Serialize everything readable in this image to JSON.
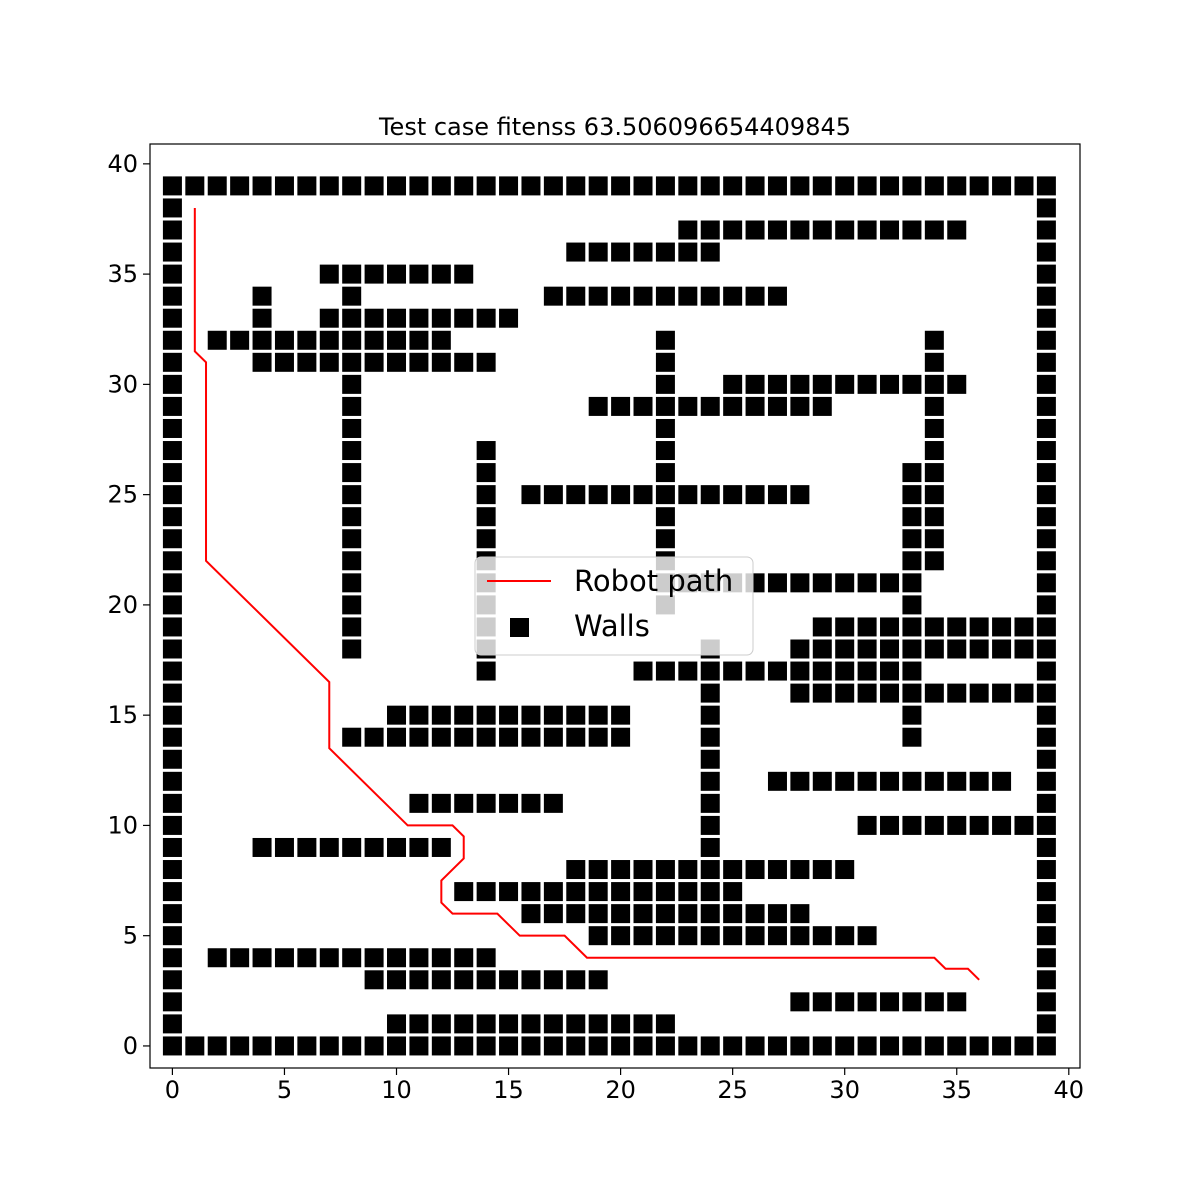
{
  "chart_data": {
    "type": "scatter",
    "title": "Test case fitenss 63.506096654409845",
    "xlabel": "",
    "ylabel": "",
    "xlim": [
      -1,
      40.5
    ],
    "ylim": [
      -1,
      40.9
    ],
    "xticks": [
      0,
      5,
      10,
      15,
      20,
      25,
      30,
      35,
      40
    ],
    "yticks": [
      0,
      5,
      10,
      15,
      20,
      25,
      30,
      35,
      40
    ],
    "xtick_labels": [
      "0",
      "5",
      "10",
      "15",
      "20",
      "25",
      "30",
      "35",
      "40"
    ],
    "ytick_labels": [
      "0",
      "5",
      "10",
      "15",
      "20",
      "25",
      "30",
      "35",
      "40"
    ],
    "legend": {
      "location": "center",
      "entries": [
        {
          "label": "Robot path",
          "marker": "line",
          "color": "#ff0000"
        },
        {
          "label": "Walls",
          "marker": "square",
          "color": "#000000"
        }
      ]
    },
    "series": [
      {
        "name": "Robot path",
        "kind": "line",
        "color": "#ff0000",
        "x": [
          1.0,
          1.0,
          1.5,
          1.5,
          7.0,
          7.0,
          10.5,
          12.5,
          13.0,
          13.0,
          12.0,
          12.0,
          12.5,
          14.5,
          15.5,
          17.5,
          18.5,
          34.0,
          34.5,
          35.5,
          36.0
        ],
        "y": [
          38.0,
          31.5,
          31.0,
          22.0,
          16.5,
          13.5,
          10.0,
          10.0,
          9.5,
          8.5,
          7.5,
          6.5,
          6.0,
          6.0,
          5.0,
          5.0,
          4.0,
          4.0,
          3.5,
          3.5,
          3.0
        ]
      },
      {
        "name": "Walls",
        "kind": "square-marker",
        "color": "#000000",
        "segments": [
          {
            "axis": "h",
            "y": 0,
            "from": 0,
            "to": 39
          },
          {
            "axis": "h",
            "y": 39,
            "from": 0,
            "to": 39
          },
          {
            "axis": "v",
            "x": 0,
            "from": 1,
            "to": 38
          },
          {
            "axis": "v",
            "x": 39,
            "from": 1,
            "to": 38
          },
          {
            "axis": "h",
            "y": 37,
            "from": 23,
            "to": 35
          },
          {
            "axis": "h",
            "y": 36,
            "from": 18,
            "to": 24
          },
          {
            "axis": "h",
            "y": 35,
            "from": 7,
            "to": 13
          },
          {
            "axis": "h",
            "y": 34,
            "from": 4,
            "to": 4
          },
          {
            "axis": "h",
            "y": 34,
            "from": 8,
            "to": 8
          },
          {
            "axis": "h",
            "y": 34,
            "from": 17,
            "to": 27
          },
          {
            "axis": "h",
            "y": 33,
            "from": 4,
            "to": 4
          },
          {
            "axis": "h",
            "y": 33,
            "from": 7,
            "to": 15
          },
          {
            "axis": "h",
            "y": 32,
            "from": 2,
            "to": 12
          },
          {
            "axis": "h",
            "y": 32,
            "from": 22,
            "to": 22
          },
          {
            "axis": "h",
            "y": 32,
            "from": 34,
            "to": 34
          },
          {
            "axis": "h",
            "y": 31,
            "from": 4,
            "to": 14
          },
          {
            "axis": "h",
            "y": 31,
            "from": 22,
            "to": 22
          },
          {
            "axis": "h",
            "y": 31,
            "from": 34,
            "to": 34
          },
          {
            "axis": "h",
            "y": 30,
            "from": 25,
            "to": 35
          },
          {
            "axis": "h",
            "y": 29,
            "from": 19,
            "to": 29
          },
          {
            "axis": "h",
            "y": 25,
            "from": 16,
            "to": 28
          },
          {
            "axis": "h",
            "y": 21,
            "from": 22,
            "to": 32
          },
          {
            "axis": "h",
            "y": 19,
            "from": 29,
            "to": 38
          },
          {
            "axis": "h",
            "y": 18,
            "from": 28,
            "to": 38
          },
          {
            "axis": "h",
            "y": 17,
            "from": 21,
            "to": 33
          },
          {
            "axis": "h",
            "y": 16,
            "from": 28,
            "to": 38
          },
          {
            "axis": "h",
            "y": 15,
            "from": 10,
            "to": 20
          },
          {
            "axis": "h",
            "y": 14,
            "from": 8,
            "to": 20
          },
          {
            "axis": "h",
            "y": 12,
            "from": 27,
            "to": 37
          },
          {
            "axis": "h",
            "y": 11,
            "from": 11,
            "to": 17
          },
          {
            "axis": "h",
            "y": 10,
            "from": 31,
            "to": 38
          },
          {
            "axis": "h",
            "y": 9,
            "from": 4,
            "to": 12
          },
          {
            "axis": "h",
            "y": 8,
            "from": 18,
            "to": 30
          },
          {
            "axis": "h",
            "y": 7,
            "from": 13,
            "to": 25
          },
          {
            "axis": "h",
            "y": 6,
            "from": 16,
            "to": 28
          },
          {
            "axis": "h",
            "y": 5,
            "from": 19,
            "to": 31
          },
          {
            "axis": "h",
            "y": 4,
            "from": 2,
            "to": 14
          },
          {
            "axis": "h",
            "y": 3,
            "from": 9,
            "to": 19
          },
          {
            "axis": "h",
            "y": 2,
            "from": 28,
            "to": 35
          },
          {
            "axis": "h",
            "y": 1,
            "from": 10,
            "to": 22
          },
          {
            "axis": "v",
            "x": 8,
            "from": 18,
            "to": 30
          },
          {
            "axis": "v",
            "x": 14,
            "from": 17,
            "to": 27
          },
          {
            "axis": "v",
            "x": 22,
            "from": 20,
            "to": 30
          },
          {
            "axis": "v",
            "x": 34,
            "from": 22,
            "to": 29
          },
          {
            "axis": "v",
            "x": 33,
            "from": 14,
            "to": 26
          },
          {
            "axis": "v",
            "x": 24,
            "from": 9,
            "to": 18
          }
        ]
      }
    ]
  }
}
